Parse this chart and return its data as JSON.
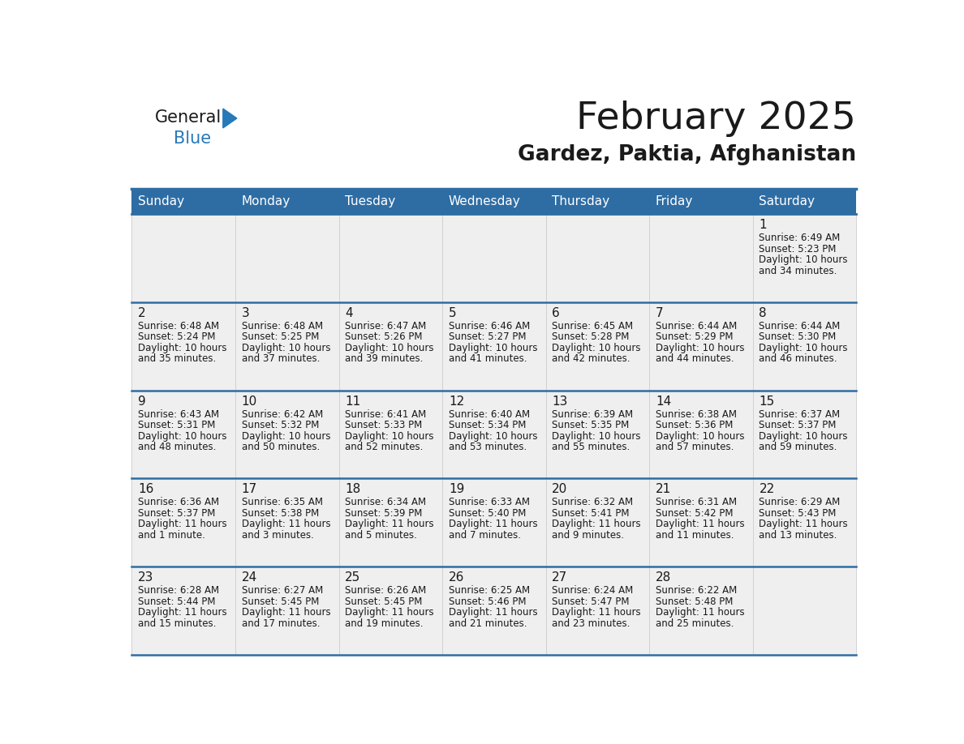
{
  "title": "February 2025",
  "subtitle": "Gardez, Paktia, Afghanistan",
  "header_bg": "#2E6DA4",
  "header_text": "#FFFFFF",
  "cell_bg": "#EFEFEF",
  "border_color": "#2E6DA4",
  "row_divider_color": "#2E6DA4",
  "day_names": [
    "Sunday",
    "Monday",
    "Tuesday",
    "Wednesday",
    "Thursday",
    "Friday",
    "Saturday"
  ],
  "title_color": "#1a1a1a",
  "subtitle_color": "#1a1a1a",
  "day_num_color": "#1a1a1a",
  "info_color": "#1a1a1a",
  "logo_black": "#1a1a1a",
  "logo_blue": "#2779B8",
  "logo_triangle": "#2779B8",
  "calendar": [
    [
      null,
      null,
      null,
      null,
      null,
      null,
      {
        "day": "1",
        "sunrise": "6:49 AM",
        "sunset": "5:23 PM",
        "daylight_line1": "Daylight: 10 hours",
        "daylight_line2": "and 34 minutes."
      }
    ],
    [
      {
        "day": "2",
        "sunrise": "6:48 AM",
        "sunset": "5:24 PM",
        "daylight_line1": "Daylight: 10 hours",
        "daylight_line2": "and 35 minutes."
      },
      {
        "day": "3",
        "sunrise": "6:48 AM",
        "sunset": "5:25 PM",
        "daylight_line1": "Daylight: 10 hours",
        "daylight_line2": "and 37 minutes."
      },
      {
        "day": "4",
        "sunrise": "6:47 AM",
        "sunset": "5:26 PM",
        "daylight_line1": "Daylight: 10 hours",
        "daylight_line2": "and 39 minutes."
      },
      {
        "day": "5",
        "sunrise": "6:46 AM",
        "sunset": "5:27 PM",
        "daylight_line1": "Daylight: 10 hours",
        "daylight_line2": "and 41 minutes."
      },
      {
        "day": "6",
        "sunrise": "6:45 AM",
        "sunset": "5:28 PM",
        "daylight_line1": "Daylight: 10 hours",
        "daylight_line2": "and 42 minutes."
      },
      {
        "day": "7",
        "sunrise": "6:44 AM",
        "sunset": "5:29 PM",
        "daylight_line1": "Daylight: 10 hours",
        "daylight_line2": "and 44 minutes."
      },
      {
        "day": "8",
        "sunrise": "6:44 AM",
        "sunset": "5:30 PM",
        "daylight_line1": "Daylight: 10 hours",
        "daylight_line2": "and 46 minutes."
      }
    ],
    [
      {
        "day": "9",
        "sunrise": "6:43 AM",
        "sunset": "5:31 PM",
        "daylight_line1": "Daylight: 10 hours",
        "daylight_line2": "and 48 minutes."
      },
      {
        "day": "10",
        "sunrise": "6:42 AM",
        "sunset": "5:32 PM",
        "daylight_line1": "Daylight: 10 hours",
        "daylight_line2": "and 50 minutes."
      },
      {
        "day": "11",
        "sunrise": "6:41 AM",
        "sunset": "5:33 PM",
        "daylight_line1": "Daylight: 10 hours",
        "daylight_line2": "and 52 minutes."
      },
      {
        "day": "12",
        "sunrise": "6:40 AM",
        "sunset": "5:34 PM",
        "daylight_line1": "Daylight: 10 hours",
        "daylight_line2": "and 53 minutes."
      },
      {
        "day": "13",
        "sunrise": "6:39 AM",
        "sunset": "5:35 PM",
        "daylight_line1": "Daylight: 10 hours",
        "daylight_line2": "and 55 minutes."
      },
      {
        "day": "14",
        "sunrise": "6:38 AM",
        "sunset": "5:36 PM",
        "daylight_line1": "Daylight: 10 hours",
        "daylight_line2": "and 57 minutes."
      },
      {
        "day": "15",
        "sunrise": "6:37 AM",
        "sunset": "5:37 PM",
        "daylight_line1": "Daylight: 10 hours",
        "daylight_line2": "and 59 minutes."
      }
    ],
    [
      {
        "day": "16",
        "sunrise": "6:36 AM",
        "sunset": "5:37 PM",
        "daylight_line1": "Daylight: 11 hours",
        "daylight_line2": "and 1 minute."
      },
      {
        "day": "17",
        "sunrise": "6:35 AM",
        "sunset": "5:38 PM",
        "daylight_line1": "Daylight: 11 hours",
        "daylight_line2": "and 3 minutes."
      },
      {
        "day": "18",
        "sunrise": "6:34 AM",
        "sunset": "5:39 PM",
        "daylight_line1": "Daylight: 11 hours",
        "daylight_line2": "and 5 minutes."
      },
      {
        "day": "19",
        "sunrise": "6:33 AM",
        "sunset": "5:40 PM",
        "daylight_line1": "Daylight: 11 hours",
        "daylight_line2": "and 7 minutes."
      },
      {
        "day": "20",
        "sunrise": "6:32 AM",
        "sunset": "5:41 PM",
        "daylight_line1": "Daylight: 11 hours",
        "daylight_line2": "and 9 minutes."
      },
      {
        "day": "21",
        "sunrise": "6:31 AM",
        "sunset": "5:42 PM",
        "daylight_line1": "Daylight: 11 hours",
        "daylight_line2": "and 11 minutes."
      },
      {
        "day": "22",
        "sunrise": "6:29 AM",
        "sunset": "5:43 PM",
        "daylight_line1": "Daylight: 11 hours",
        "daylight_line2": "and 13 minutes."
      }
    ],
    [
      {
        "day": "23",
        "sunrise": "6:28 AM",
        "sunset": "5:44 PM",
        "daylight_line1": "Daylight: 11 hours",
        "daylight_line2": "and 15 minutes."
      },
      {
        "day": "24",
        "sunrise": "6:27 AM",
        "sunset": "5:45 PM",
        "daylight_line1": "Daylight: 11 hours",
        "daylight_line2": "and 17 minutes."
      },
      {
        "day": "25",
        "sunrise": "6:26 AM",
        "sunset": "5:45 PM",
        "daylight_line1": "Daylight: 11 hours",
        "daylight_line2": "and 19 minutes."
      },
      {
        "day": "26",
        "sunrise": "6:25 AM",
        "sunset": "5:46 PM",
        "daylight_line1": "Daylight: 11 hours",
        "daylight_line2": "and 21 minutes."
      },
      {
        "day": "27",
        "sunrise": "6:24 AM",
        "sunset": "5:47 PM",
        "daylight_line1": "Daylight: 11 hours",
        "daylight_line2": "and 23 minutes."
      },
      {
        "day": "28",
        "sunrise": "6:22 AM",
        "sunset": "5:48 PM",
        "daylight_line1": "Daylight: 11 hours",
        "daylight_line2": "and 25 minutes."
      },
      null
    ]
  ]
}
